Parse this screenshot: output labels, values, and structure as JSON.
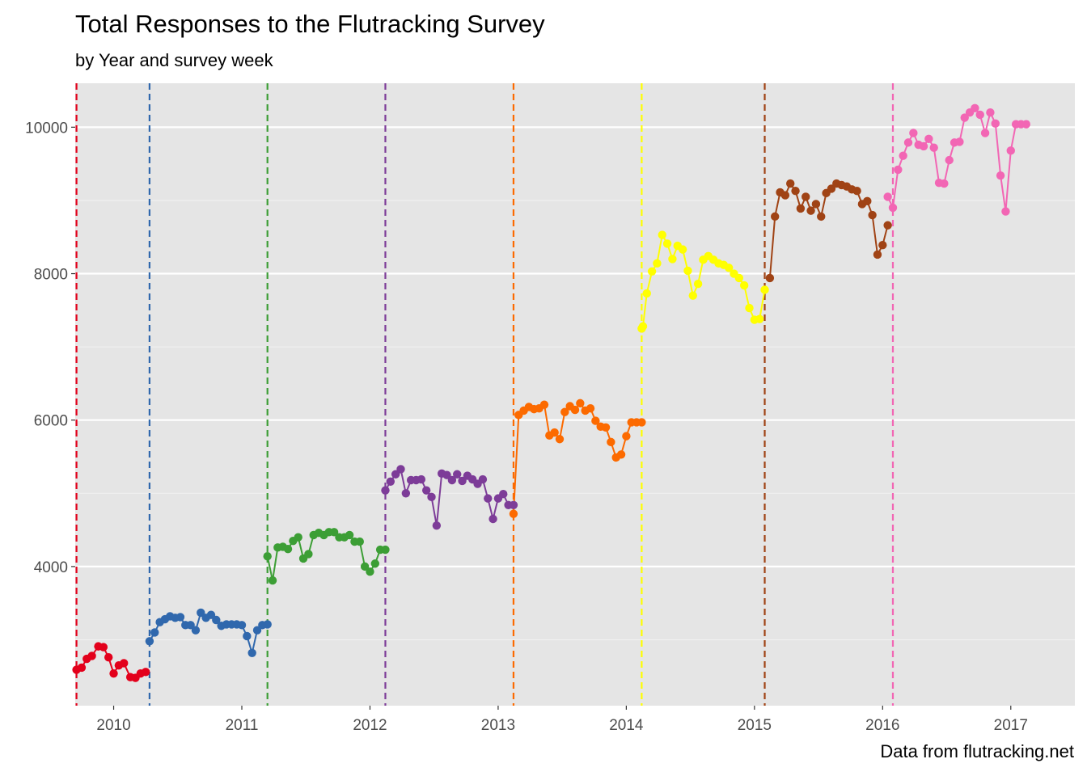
{
  "chart_data": {
    "type": "line",
    "title": "Total Responses to the Flutracking Survey",
    "subtitle": "by Year and survey week",
    "caption": "Data from flutracking.net",
    "xlabel": "",
    "ylabel": "",
    "xlim": [
      2009.7,
      2017.5
    ],
    "ylim": [
      2100,
      10600
    ],
    "x_ticks": [
      2010,
      2011,
      2012,
      2013,
      2014,
      2015,
      2016,
      2017
    ],
    "x_tick_labels": [
      "2010",
      "2011",
      "2012",
      "2013",
      "2014",
      "2015",
      "2016",
      "2017"
    ],
    "y_ticks": [
      4000,
      6000,
      8000,
      10000
    ],
    "y_tick_labels": [
      "4000",
      "6000",
      "8000",
      "10000"
    ],
    "y_minor_ticks": [
      3000,
      5000,
      7000,
      9000
    ],
    "grid": true,
    "background": "#e5e5e5",
    "legend": "none",
    "series": [
      {
        "color": "#e3001b",
        "start": 2009.71,
        "x": [
          2009.71,
          2009.75,
          2009.79,
          2009.83,
          2009.88,
          2009.92,
          2009.96,
          2010.0,
          2010.04,
          2010.08,
          2010.13,
          2010.17,
          2010.21,
          2010.25
        ],
        "values": [
          2590,
          2620,
          2740,
          2780,
          2910,
          2900,
          2760,
          2540,
          2650,
          2680,
          2490,
          2480,
          2540,
          2560
        ]
      },
      {
        "color": "#3068ad",
        "start": 2010.28,
        "x": [
          2010.28,
          2010.32,
          2010.36,
          2010.4,
          2010.44,
          2010.48,
          2010.52,
          2010.56,
          2010.6,
          2010.64,
          2010.68,
          2010.72,
          2010.76,
          2010.8,
          2010.84,
          2010.88,
          2010.92,
          2010.96,
          2011.0,
          2011.04,
          2011.08,
          2011.12,
          2011.16,
          2011.2
        ],
        "values": [
          2980,
          3100,
          3240,
          3280,
          3320,
          3300,
          3310,
          3200,
          3200,
          3130,
          3370,
          3300,
          3340,
          3270,
          3190,
          3210,
          3210,
          3210,
          3200,
          3050,
          2820,
          3130,
          3200,
          3210
        ]
      },
      {
        "color": "#3c9e35",
        "start": 2011.2,
        "x": [
          2011.2,
          2011.24,
          2011.28,
          2011.32,
          2011.36,
          2011.4,
          2011.44,
          2011.48,
          2011.52,
          2011.56,
          2011.6,
          2011.64,
          2011.68,
          2011.72,
          2011.76,
          2011.8,
          2011.84,
          2011.88,
          2011.92,
          2011.96,
          2012.0,
          2012.04,
          2012.08,
          2012.12
        ],
        "values": [
          4140,
          3810,
          4260,
          4270,
          4240,
          4350,
          4400,
          4110,
          4170,
          4430,
          4460,
          4430,
          4470,
          4470,
          4400,
          4400,
          4430,
          4340,
          4340,
          4000,
          3930,
          4040,
          4230,
          4230
        ]
      },
      {
        "color": "#7d3c98",
        "start": 2012.12,
        "x": [
          2012.12,
          2012.16,
          2012.2,
          2012.24,
          2012.28,
          2012.32,
          2012.36,
          2012.4,
          2012.44,
          2012.48,
          2012.52,
          2012.56,
          2012.6,
          2012.64,
          2012.68,
          2012.72,
          2012.76,
          2012.8,
          2012.84,
          2012.88,
          2012.92,
          2012.96,
          2013.0,
          2013.04,
          2013.08,
          2013.12
        ],
        "values": [
          5040,
          5160,
          5260,
          5330,
          5000,
          5180,
          5180,
          5190,
          5040,
          4950,
          4560,
          5270,
          5250,
          5180,
          5260,
          5170,
          5240,
          5190,
          5130,
          5190,
          4930,
          4650,
          4930,
          4990,
          4840,
          4840
        ]
      },
      {
        "color": "#fc6a00",
        "start": 2013.12,
        "x": [
          2013.12,
          2013.16,
          2013.2,
          2013.24,
          2013.28,
          2013.32,
          2013.36,
          2013.4,
          2013.44,
          2013.48,
          2013.52,
          2013.56,
          2013.6,
          2013.64,
          2013.68,
          2013.72,
          2013.76,
          2013.8,
          2013.84,
          2013.88,
          2013.92,
          2013.96,
          2014.0,
          2014.04,
          2014.08,
          2014.12
        ],
        "values": [
          4720,
          6070,
          6130,
          6180,
          6150,
          6160,
          6210,
          5790,
          5830,
          5740,
          6110,
          6190,
          6140,
          6230,
          6130,
          6160,
          5990,
          5910,
          5900,
          5700,
          5490,
          5530,
          5780,
          5970,
          5970,
          5970
        ]
      },
      {
        "color": "#ffff00",
        "start": 2014.12,
        "x": [
          2014.12,
          2014.13,
          2014.16,
          2014.2,
          2014.24,
          2014.28,
          2014.32,
          2014.36,
          2014.4,
          2014.44,
          2014.48,
          2014.52,
          2014.56,
          2014.6,
          2014.64,
          2014.68,
          2014.72,
          2014.76,
          2014.8,
          2014.84,
          2014.88,
          2014.92,
          2014.96,
          2015.0,
          2015.04,
          2015.08
        ],
        "values": [
          7250,
          7280,
          7730,
          8030,
          8140,
          8530,
          8410,
          8200,
          8380,
          8330,
          8040,
          7700,
          7860,
          8190,
          8240,
          8190,
          8140,
          8120,
          8080,
          8000,
          7940,
          7840,
          7530,
          7370,
          7380,
          7780
        ]
      },
      {
        "color": "#a04315",
        "start": 2015.08,
        "x": [
          2015.12,
          2015.16,
          2015.2,
          2015.24,
          2015.28,
          2015.32,
          2015.36,
          2015.4,
          2015.44,
          2015.48,
          2015.52,
          2015.56,
          2015.6,
          2015.64,
          2015.68,
          2015.72,
          2015.76,
          2015.8,
          2015.84,
          2015.88,
          2015.92,
          2015.96,
          2016.0,
          2016.04
        ],
        "values": [
          7940,
          8780,
          9110,
          9070,
          9230,
          9130,
          8890,
          9050,
          8860,
          8950,
          8780,
          9100,
          9160,
          9230,
          9210,
          9190,
          9150,
          9130,
          8950,
          8990,
          8800,
          8260,
          8390,
          8660
        ]
      },
      {
        "color": "#f266b4",
        "start": 2016.08,
        "x": [
          2016.04,
          2016.08,
          2016.12,
          2016.16,
          2016.2,
          2016.24,
          2016.28,
          2016.32,
          2016.36,
          2016.4,
          2016.44,
          2016.48,
          2016.52,
          2016.56,
          2016.6,
          2016.64,
          2016.68,
          2016.72,
          2016.76,
          2016.8,
          2016.84,
          2016.88,
          2016.92,
          2016.96,
          2017.0,
          2017.04,
          2017.08,
          2017.12
        ],
        "values": [
          9050,
          8900,
          9420,
          9610,
          9790,
          9920,
          9760,
          9740,
          9840,
          9720,
          9240,
          9230,
          9550,
          9790,
          9800,
          10130,
          10200,
          10260,
          10170,
          9920,
          10200,
          10050,
          9340,
          8850,
          9680,
          10040,
          10040,
          10040
        ]
      }
    ]
  }
}
